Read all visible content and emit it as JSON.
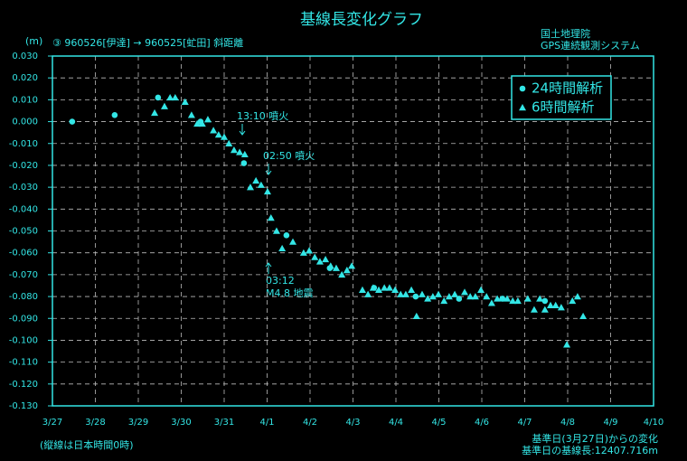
{
  "chart_data": {
    "type": "scatter",
    "title": "基線長変化グラフ",
    "subtitle": "③ 960526[伊達] → 960525[虻田] 斜距離",
    "ylabel": "(m)",
    "source": [
      "国土地理院",
      "GPS連続観測システム"
    ],
    "footnote": "(縦線は日本時間0時)",
    "notes": [
      "基準日(3月27日)からの変化",
      "基準日の基線長:12407.716m"
    ],
    "annotations": [
      "13:10 噴火",
      "02:50 噴火",
      "03:12",
      "M4.8 地震"
    ],
    "grid": true,
    "legend": "top-right",
    "xlim": [
      0,
      14
    ],
    "xticks": [
      {
        "value": 0,
        "label": "3/27"
      },
      {
        "value": 1,
        "label": "3/28"
      },
      {
        "value": 2,
        "label": "3/29"
      },
      {
        "value": 3,
        "label": "3/30"
      },
      {
        "value": 4,
        "label": "3/31"
      },
      {
        "value": 5,
        "label": "4/1"
      },
      {
        "value": 6,
        "label": "4/2"
      },
      {
        "value": 7,
        "label": "4/3"
      },
      {
        "value": 8,
        "label": "4/4"
      },
      {
        "value": 9,
        "label": "4/5"
      },
      {
        "value": 10,
        "label": "4/6"
      },
      {
        "value": 11,
        "label": "4/7"
      },
      {
        "value": 12,
        "label": "4/8"
      },
      {
        "value": 13,
        "label": "4/9"
      },
      {
        "value": 14,
        "label": "4/10"
      }
    ],
    "ylim": [
      -0.13,
      0.03
    ],
    "yticks": [
      {
        "value": 0.03,
        "label": "0.030"
      },
      {
        "value": 0.02,
        "label": "0.020"
      },
      {
        "value": 0.01,
        "label": "0.010"
      },
      {
        "value": 0,
        "label": "0.000"
      },
      {
        "value": -0.01,
        "label": "-0.010"
      },
      {
        "value": -0.02,
        "label": "-0.020"
      },
      {
        "value": -0.03,
        "label": "-0.030"
      },
      {
        "value": -0.04,
        "label": "-0.040"
      },
      {
        "value": -0.05,
        "label": "-0.050"
      },
      {
        "value": -0.06,
        "label": "-0.060"
      },
      {
        "value": -0.07,
        "label": "-0.070"
      },
      {
        "value": -0.08,
        "label": "-0.080"
      },
      {
        "value": -0.09,
        "label": "-0.090"
      },
      {
        "value": -0.1,
        "label": "-0.100"
      },
      {
        "value": -0.11,
        "label": "-0.110"
      },
      {
        "value": -0.12,
        "label": "-0.120"
      },
      {
        "value": -0.13,
        "label": "-0.130"
      }
    ],
    "series": [
      {
        "name": "24時間解析",
        "marker": "circle",
        "color": "#33e6e6",
        "x": [
          0.46,
          1.45,
          2.46,
          3.45,
          4.46,
          5.45,
          6.46,
          7.49,
          8.46,
          9.47,
          10.48,
          11.47
        ],
        "values": [
          0.0,
          0.003,
          0.011,
          0.0,
          -0.019,
          -0.052,
          -0.067,
          -0.076,
          -0.08,
          -0.081,
          -0.081,
          -0.082
        ]
      },
      {
        "name": "6時間解析",
        "marker": "triangle",
        "color": "#33e6e6",
        "x": [
          2.38,
          2.61,
          2.74,
          2.86,
          3.09,
          3.24,
          3.37,
          3.49,
          3.62,
          3.75,
          3.87,
          4.0,
          4.11,
          4.23,
          4.36,
          4.48,
          4.61,
          4.74,
          4.86,
          5.01,
          5.09,
          5.22,
          5.35,
          5.6,
          5.85,
          5.98,
          6.11,
          6.23,
          6.36,
          6.48,
          6.61,
          6.74,
          6.86,
          6.97,
          7.22,
          7.35,
          7.47,
          7.6,
          7.73,
          7.85,
          7.98,
          8.11,
          8.23,
          8.36,
          8.48,
          8.61,
          8.74,
          8.86,
          8.99,
          9.12,
          9.24,
          9.37,
          9.6,
          9.73,
          9.85,
          9.98,
          10.11,
          10.23,
          10.36,
          10.59,
          10.72,
          10.84,
          11.07,
          11.22,
          11.35,
          11.47,
          11.6,
          11.72,
          11.85,
          11.98,
          12.11,
          12.23,
          12.36
        ],
        "values": [
          0.004,
          0.007,
          0.011,
          0.011,
          0.009,
          0.003,
          -0.001,
          -0.001,
          0.001,
          -0.004,
          -0.006,
          -0.007,
          -0.01,
          -0.013,
          -0.014,
          -0.015,
          -0.03,
          -0.027,
          -0.029,
          -0.032,
          -0.044,
          -0.05,
          -0.058,
          -0.055,
          -0.06,
          -0.059,
          -0.062,
          -0.064,
          -0.063,
          -0.066,
          -0.067,
          -0.07,
          -0.068,
          -0.066,
          -0.077,
          -0.079,
          -0.076,
          -0.077,
          -0.076,
          -0.076,
          -0.077,
          -0.079,
          -0.079,
          -0.077,
          -0.089,
          -0.079,
          -0.081,
          -0.08,
          -0.079,
          -0.082,
          -0.08,
          -0.079,
          -0.078,
          -0.08,
          -0.08,
          -0.077,
          -0.08,
          -0.083,
          -0.081,
          -0.081,
          -0.082,
          -0.082,
          -0.081,
          -0.086,
          -0.081,
          -0.086,
          -0.084,
          -0.084,
          -0.085,
          -0.102,
          -0.082,
          -0.08,
          -0.089
        ]
      }
    ]
  }
}
